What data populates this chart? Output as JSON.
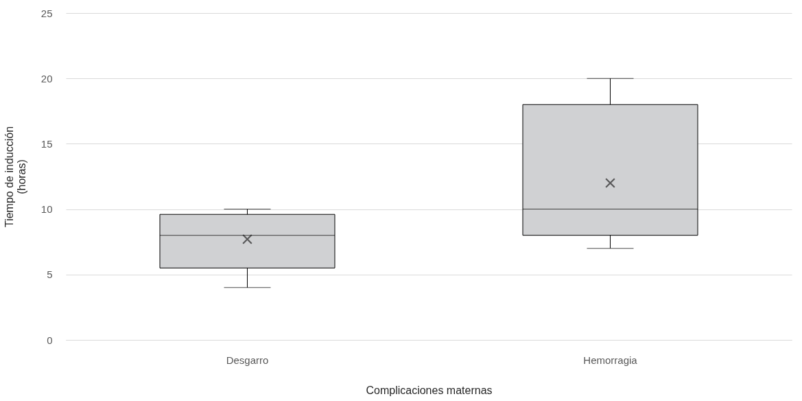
{
  "chart_data": {
    "type": "box",
    "xlabel": "Complicaciones maternas",
    "ylabel": "Tiempo de inducción\n(horas)",
    "categories": [
      "Desgarro",
      "Hemorragia"
    ],
    "boxes": [
      {
        "low": 4,
        "q1": 5.5,
        "median": 8,
        "q3": 9.6,
        "high": 10,
        "mean": 7.7
      },
      {
        "low": 7,
        "q1": 8,
        "median": 10,
        "q3": 18,
        "high": 20,
        "mean": 12
      }
    ],
    "color": "#d0d1d3",
    "ylim": [
      0,
      25
    ],
    "yticks": [
      0,
      5,
      10,
      15,
      20,
      25
    ],
    "grid": "y"
  }
}
